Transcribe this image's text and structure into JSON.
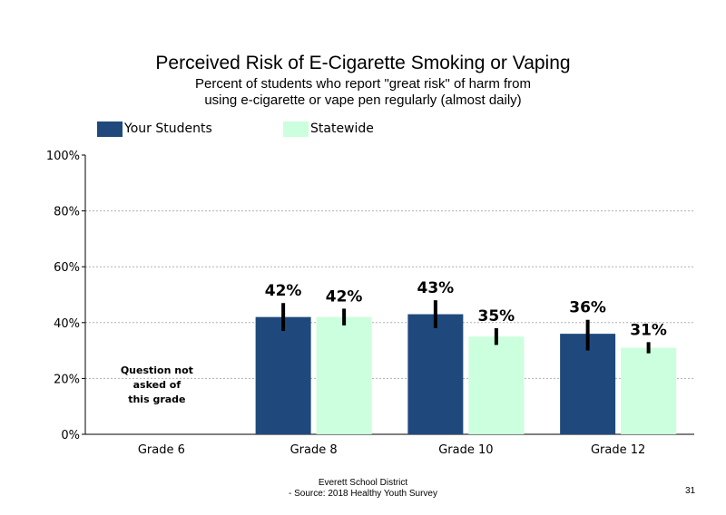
{
  "chart_data": {
    "type": "bar",
    "title": "Perceived Risk of E-Cigarette Smoking or Vaping",
    "subtitle": [
      "Percent of students who report \"great risk\" of harm from",
      "using e-cigarette or vape pen regularly (almost daily)"
    ],
    "categories": [
      "Grade 6",
      "Grade 8",
      "Grade 10",
      "Grade 12"
    ],
    "series": [
      {
        "name": "Your Students",
        "color": "#1f497d",
        "values": [
          null,
          42,
          43,
          36
        ],
        "labels": [
          "",
          "42%",
          "43%",
          "36%"
        ],
        "ci": [
          null,
          [
            37,
            47
          ],
          [
            38,
            48
          ],
          [
            30,
            41
          ]
        ]
      },
      {
        "name": "Statewide",
        "color": "#ccffdd",
        "values": [
          null,
          42,
          35,
          31
        ],
        "labels": [
          "",
          "42%",
          "35%",
          "31%"
        ],
        "ci": [
          null,
          [
            39,
            45
          ],
          [
            32,
            38
          ],
          [
            29,
            33
          ]
        ]
      }
    ],
    "yticks": [
      "0%",
      "20%",
      "40%",
      "60%",
      "80%",
      "100%"
    ],
    "ylim": [
      0,
      100
    ],
    "grid": true,
    "legend_position": "top",
    "annotation": [
      "Question not",
      "asked of",
      "this grade"
    ],
    "xlabel": "",
    "ylabel": ""
  },
  "footer": {
    "line1": "Everett School District",
    "line2": "- Source: 2018 Healthy Youth Survey",
    "page_number": "31"
  }
}
